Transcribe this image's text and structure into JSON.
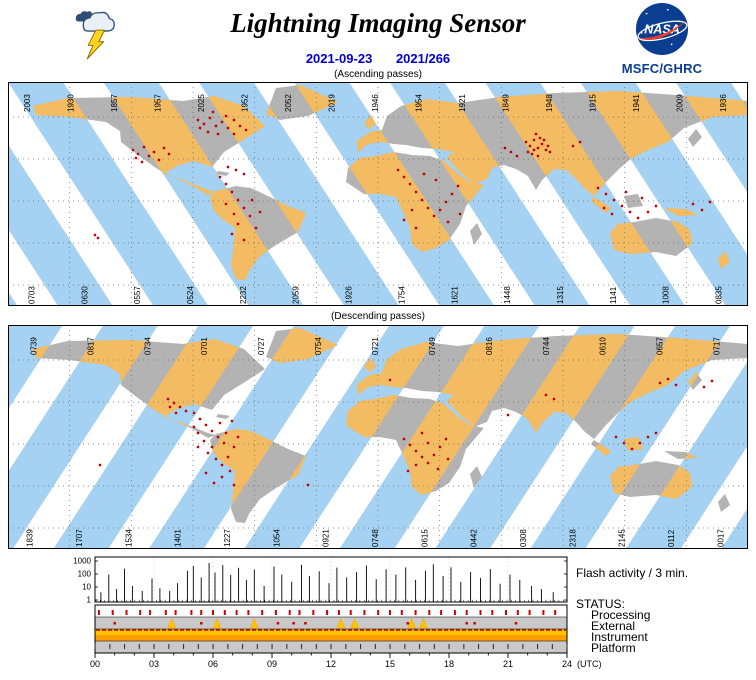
{
  "header": {
    "title": "Lightning Imaging Sensor",
    "nasa_label": "NASA",
    "org": "MSFC/GHRC",
    "date": "2021-09-23",
    "day_of_year": "2021/266"
  },
  "maps": {
    "ascending": {
      "label": "(Ascending passes)",
      "top_labels": [
        "2003",
        "1930",
        "1857",
        "1957",
        "2025",
        "1952",
        "2052",
        "2019",
        "1946",
        "1954",
        "1921",
        "1849",
        "1948",
        "1915",
        "1941",
        "2009",
        "1936"
      ],
      "bottom_labels": [
        "0703",
        "0630",
        "0557",
        "0524",
        "2232",
        "2059",
        "1926",
        "1754",
        "1621",
        "1448",
        "1315",
        "1141",
        "1008",
        "0835"
      ],
      "flashes": [
        [
          125,
          68
        ],
        [
          130,
          72
        ],
        [
          136,
          65
        ],
        [
          141,
          74
        ],
        [
          146,
          70
        ],
        [
          151,
          78
        ],
        [
          156,
          66
        ],
        [
          161,
          72
        ],
        [
          134,
          80
        ],
        [
          128,
          76
        ],
        [
          190,
          38
        ],
        [
          196,
          42
        ],
        [
          202,
          36
        ],
        [
          208,
          44
        ],
        [
          214,
          40
        ],
        [
          220,
          46
        ],
        [
          226,
          38
        ],
        [
          232,
          44
        ],
        [
          200,
          50
        ],
        [
          210,
          52
        ],
        [
          218,
          34
        ],
        [
          238,
          48
        ],
        [
          192,
          46
        ],
        [
          205,
          30
        ],
        [
          226,
          52
        ],
        [
          220,
          85
        ],
        [
          228,
          88
        ],
        [
          236,
          92
        ],
        [
          212,
          95
        ],
        [
          218,
          102
        ],
        [
          224,
          110
        ],
        [
          230,
          118
        ],
        [
          236,
          126
        ],
        [
          242,
          134
        ],
        [
          230,
          142
        ],
        [
          224,
          152
        ],
        [
          236,
          158
        ],
        [
          248,
          146
        ],
        [
          252,
          130
        ],
        [
          244,
          118
        ],
        [
          218,
          122
        ],
        [
          226,
          132
        ],
        [
          87,
          153
        ],
        [
          90,
          156
        ],
        [
          390,
          88
        ],
        [
          396,
          95
        ],
        [
          402,
          102
        ],
        [
          408,
          110
        ],
        [
          414,
          118
        ],
        [
          420,
          126
        ],
        [
          426,
          134
        ],
        [
          432,
          128
        ],
        [
          438,
          120
        ],
        [
          444,
          112
        ],
        [
          450,
          104
        ],
        [
          428,
          98
        ],
        [
          416,
          92
        ],
        [
          404,
          128
        ],
        [
          396,
          138
        ],
        [
          440,
          140
        ],
        [
          452,
          132
        ],
        [
          408,
          146
        ],
        [
          497,
          66
        ],
        [
          503,
          70
        ],
        [
          509,
          74
        ],
        [
          518,
          60
        ],
        [
          522,
          64
        ],
        [
          526,
          58
        ],
        [
          530,
          66
        ],
        [
          534,
          62
        ],
        [
          538,
          68
        ],
        [
          524,
          72
        ],
        [
          530,
          74
        ],
        [
          520,
          70
        ],
        [
          536,
          58
        ],
        [
          540,
          64
        ],
        [
          528,
          52
        ],
        [
          532,
          56
        ],
        [
          526,
          68
        ],
        [
          542,
          70
        ],
        [
          565,
          64
        ],
        [
          572,
          60
        ],
        [
          590,
          106
        ],
        [
          598,
          112
        ],
        [
          606,
          118
        ],
        [
          614,
          124
        ],
        [
          622,
          130
        ],
        [
          630,
          136
        ],
        [
          640,
          130
        ],
        [
          648,
          124
        ],
        [
          634,
          116
        ],
        [
          618,
          110
        ],
        [
          604,
          132
        ],
        [
          596,
          126
        ],
        [
          685,
          122
        ],
        [
          694,
          128
        ],
        [
          702,
          120
        ]
      ]
    },
    "descending": {
      "label": "(Descending passes)",
      "top_labels": [
        "0739",
        "0817",
        "0734",
        "0701",
        "0727",
        "0754",
        "0721",
        "0749",
        "0816",
        "0744",
        "0610",
        "0657",
        "0717"
      ],
      "bottom_labels": [
        "1839",
        "1707",
        "1534",
        "1401",
        "1227",
        "1054",
        "0921",
        "0748",
        "0615",
        "0442",
        "0308",
        "2318",
        "2145",
        "0112",
        "0017"
      ],
      "flashes": [
        [
          160,
          74
        ],
        [
          166,
          78
        ],
        [
          172,
          82
        ],
        [
          178,
          86
        ],
        [
          168,
          88
        ],
        [
          162,
          82
        ],
        [
          186,
          88
        ],
        [
          192,
          94
        ],
        [
          198,
          100
        ],
        [
          204,
          106
        ],
        [
          210,
          112
        ],
        [
          216,
          118
        ],
        [
          204,
          122
        ],
        [
          196,
          116
        ],
        [
          190,
          108
        ],
        [
          200,
          128
        ],
        [
          208,
          134
        ],
        [
          214,
          140
        ],
        [
          220,
          132
        ],
        [
          226,
          122
        ],
        [
          218,
          108
        ],
        [
          212,
          98
        ],
        [
          222,
          146
        ],
        [
          214,
          152
        ],
        [
          206,
          158
        ],
        [
          198,
          148
        ],
        [
          226,
          160
        ],
        [
          190,
          122
        ],
        [
          186,
          102
        ],
        [
          230,
          112
        ],
        [
          224,
          96
        ],
        [
          396,
          114
        ],
        [
          402,
          120
        ],
        [
          408,
          126
        ],
        [
          414,
          132
        ],
        [
          420,
          138
        ],
        [
          426,
          130
        ],
        [
          432,
          122
        ],
        [
          438,
          114
        ],
        [
          420,
          118
        ],
        [
          408,
          140
        ],
        [
          400,
          146
        ],
        [
          430,
          144
        ],
        [
          440,
          134
        ],
        [
          414,
          108
        ],
        [
          382,
          55
        ],
        [
          538,
          70
        ],
        [
          546,
          74
        ],
        [
          608,
          112
        ],
        [
          616,
          118
        ],
        [
          624,
          124
        ],
        [
          632,
          118
        ],
        [
          640,
          112
        ],
        [
          648,
          108
        ],
        [
          652,
          58
        ],
        [
          660,
          54
        ],
        [
          668,
          60
        ],
        [
          696,
          62
        ],
        [
          704,
          56
        ],
        [
          300,
          160
        ],
        [
          92,
          140
        ],
        [
          500,
          90
        ]
      ]
    }
  },
  "colors": {
    "ocean": "#ffffff",
    "swath_ocean": "#a5d2f3",
    "land": "#b3b3b3",
    "swath_land": "#f3bc63",
    "flash": "#c00000",
    "accent_blue": "#0000cc",
    "nasa_blue": "#0b3d91",
    "nasa_red": "#fc3d21",
    "status_yellow": "#ffc400",
    "status_orange": "#ffa000",
    "status_gray": "#c9c9c9",
    "status_red": "#cc0000"
  },
  "chart_data": {
    "type": "line",
    "title": "Flash activity / 3 min.",
    "x_axis": {
      "ticks": [
        "00",
        "03",
        "06",
        "09",
        "12",
        "15",
        "18",
        "21",
        "24"
      ],
      "unit": "(UTC)",
      "range": [
        0,
        24
      ]
    },
    "y_axis": {
      "ticks": [
        1000,
        100,
        10,
        1
      ],
      "scale": "log",
      "range": [
        1,
        1000
      ]
    },
    "spikes": [
      [
        0.3,
        4
      ],
      [
        0.7,
        90
      ],
      [
        1.1,
        7
      ],
      [
        1.5,
        260
      ],
      [
        1.9,
        12
      ],
      [
        2.4,
        5
      ],
      [
        2.9,
        45
      ],
      [
        3.3,
        8
      ],
      [
        3.8,
        5
      ],
      [
        4.2,
        20
      ],
      [
        4.7,
        180
      ],
      [
        5.0,
        420
      ],
      [
        5.4,
        55
      ],
      [
        5.8,
        700
      ],
      [
        6.1,
        130
      ],
      [
        6.5,
        480
      ],
      [
        6.9,
        85
      ],
      [
        7.3,
        300
      ],
      [
        7.7,
        35
      ],
      [
        8.1,
        220
      ],
      [
        8.6,
        12
      ],
      [
        9.1,
        380
      ],
      [
        9.5,
        90
      ],
      [
        10.0,
        25
      ],
      [
        10.5,
        520
      ],
      [
        10.9,
        70
      ],
      [
        11.4,
        160
      ],
      [
        11.9,
        20
      ],
      [
        12.3,
        310
      ],
      [
        12.8,
        55
      ],
      [
        13.3,
        140
      ],
      [
        13.8,
        450
      ],
      [
        14.3,
        40
      ],
      [
        14.8,
        230
      ],
      [
        15.3,
        90
      ],
      [
        15.8,
        320
      ],
      [
        16.3,
        35
      ],
      [
        16.8,
        180
      ],
      [
        17.2,
        560
      ],
      [
        17.7,
        70
      ],
      [
        18.1,
        330
      ],
      [
        18.6,
        25
      ],
      [
        19.1,
        140
      ],
      [
        19.6,
        50
      ],
      [
        20.1,
        240
      ],
      [
        20.6,
        18
      ],
      [
        21.1,
        90
      ],
      [
        21.6,
        35
      ],
      [
        22.2,
        12
      ],
      [
        22.7,
        7
      ],
      [
        23.3,
        4
      ]
    ],
    "status": {
      "heading": "STATUS:",
      "rows": [
        {
          "label": "Processing",
          "marks": [
            0.2,
            0.9,
            1.6,
            2.3,
            2.8,
            3.6,
            4.1,
            4.9,
            5.4,
            6.0,
            6.6,
            7.2,
            7.8,
            8.5,
            9.2,
            9.9,
            10.4,
            11.1,
            11.8,
            12.4,
            13.0,
            13.7,
            14.4,
            15.0,
            15.6,
            16.3,
            17.0,
            17.6,
            18.3,
            18.9,
            19.6,
            20.2,
            20.9,
            21.5,
            22.1,
            22.8,
            23.4
          ]
        },
        {
          "label": "External",
          "triangles": [
            3.9,
            6.2,
            8.1,
            12.5,
            13.2,
            16.1,
            16.7
          ],
          "dots": [
            1.0,
            5.4,
            9.3,
            10.1,
            10.7,
            15.9,
            18.9,
            19.3,
            21.4
          ]
        },
        {
          "label": "Instrument"
        },
        {
          "label": "Platform",
          "tick_interval_hours": 0.75
        }
      ]
    }
  }
}
